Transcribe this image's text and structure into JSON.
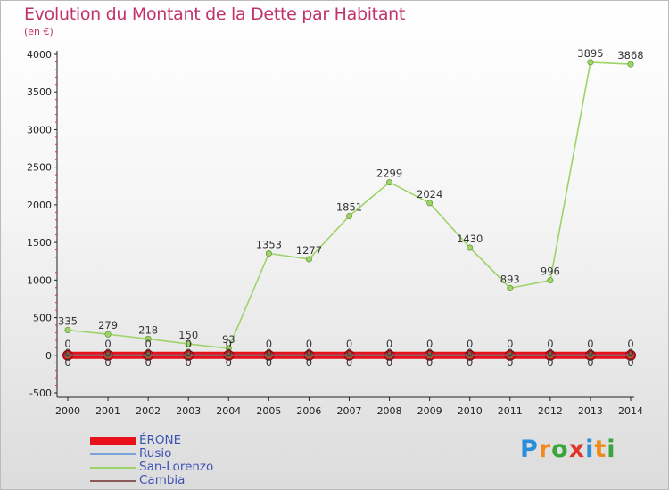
{
  "title": "Evolution du Montant de la Dette par Habitant",
  "subtitle": "(en €)",
  "brand": {
    "letters": [
      "P",
      "r",
      "o",
      "x",
      "i",
      "t",
      "i"
    ],
    "colors": [
      "#2a8ed8",
      "#f08a1c",
      "#3aa53a",
      "#e0372c",
      "#2a8ed8",
      "#f08a1c",
      "#3aa53a"
    ]
  },
  "chart_data": {
    "type": "line",
    "title": "Evolution du Montant de la Dette par Habitant",
    "ylabel": "(en €)",
    "xlabel": "",
    "x": [
      "2000",
      "2001",
      "2002",
      "2003",
      "2004",
      "2005",
      "2006",
      "2007",
      "2008",
      "2009",
      "2010",
      "2011",
      "2012",
      "2013",
      "2014"
    ],
    "ylim": [
      -500,
      4000
    ],
    "yticks": [
      -500,
      0,
      500,
      1000,
      1500,
      2000,
      2500,
      3000,
      3500,
      4000
    ],
    "grid": false,
    "legend_position": "bottom-left",
    "series": [
      {
        "name": "ÉRONE",
        "color": "#e8101a",
        "values": [
          0,
          0,
          0,
          0,
          0,
          0,
          0,
          0,
          0,
          0,
          0,
          0,
          0,
          0,
          0
        ]
      },
      {
        "name": "Rusio",
        "color": "#7ba3d8",
        "values": [
          0,
          0,
          0,
          0,
          0,
          0,
          0,
          0,
          0,
          0,
          0,
          0,
          0,
          0,
          0
        ]
      },
      {
        "name": "San-Lorenzo",
        "color": "#9ed36a",
        "values": [
          335,
          279,
          218,
          150,
          93,
          1353,
          1277,
          1851,
          2299,
          2024,
          1430,
          893,
          996,
          3895,
          3868
        ]
      },
      {
        "name": "Cambia",
        "color": "#8a5a5a",
        "values": [
          0,
          0,
          0,
          0,
          0,
          0,
          0,
          0,
          0,
          0,
          0,
          0,
          0,
          0,
          0
        ]
      }
    ]
  }
}
